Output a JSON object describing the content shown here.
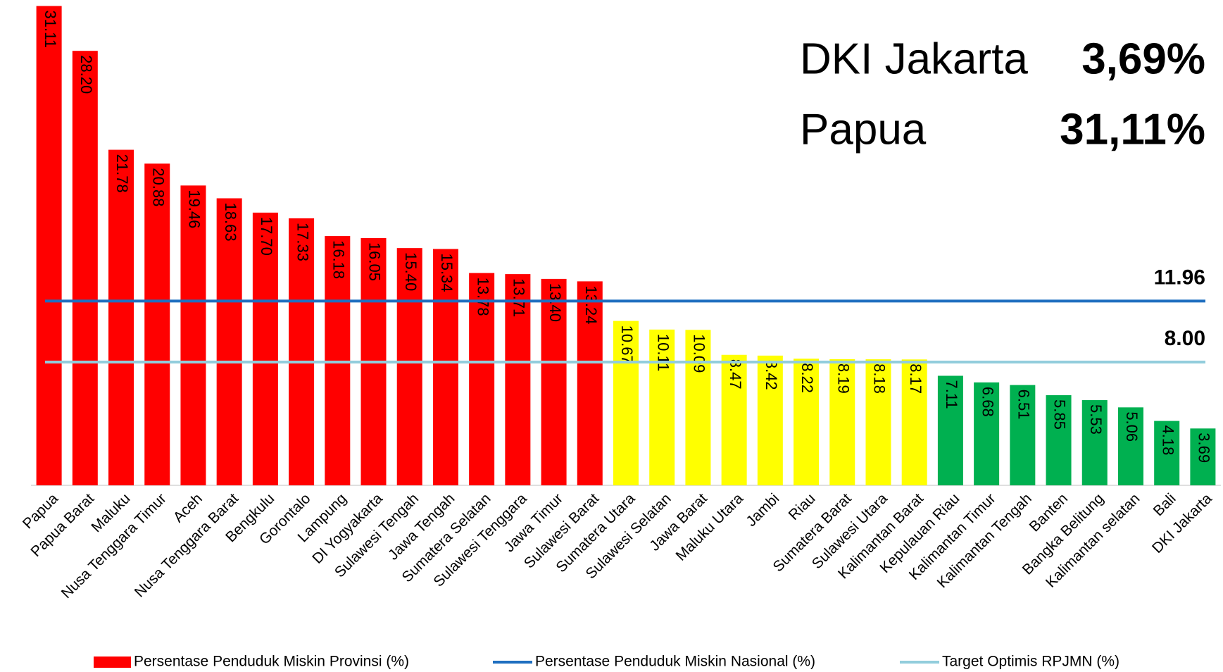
{
  "chart_data": {
    "type": "bar",
    "categories": [
      "Papua",
      "Papua Barat",
      "Maluku",
      "Nusa Tenggara Timur",
      "Aceh",
      "Nusa Tenggara Barat",
      "Bengkulu",
      "Gorontalo",
      "Lampung",
      "DI Yogyakarta",
      "Sulawesi Tengah",
      "Jawa Tengah",
      "Sumatera Selatan",
      "Sulawesi Tenggara",
      "Jawa Timur",
      "Sulawesi Barat",
      "Sumatera Utara",
      "Sulawesi Selatan",
      "Jawa Barat",
      "Maluku Utara",
      "Jambi",
      "Riau",
      "Sumatera Barat",
      "Sulawesi Utara",
      "Kalimantan Barat",
      "Kepulauan Riau",
      "Kalimantan Timur",
      "Kalimantan Tengah",
      "Banten",
      "Bangka Belitung",
      "Kalimantan selatan",
      "Bali",
      "DKI Jakarta"
    ],
    "values": [
      31.11,
      28.2,
      21.78,
      20.88,
      19.46,
      18.63,
      17.7,
      17.33,
      16.18,
      16.05,
      15.4,
      15.34,
      13.78,
      13.71,
      13.4,
      13.24,
      10.67,
      10.11,
      10.09,
      8.47,
      8.42,
      8.22,
      8.19,
      8.18,
      8.17,
      7.11,
      6.68,
      6.51,
      5.85,
      5.53,
      5.06,
      4.18,
      3.69
    ],
    "value_labels": [
      "31.11",
      "28.20",
      "21.78",
      "20.88",
      "19.46",
      "18.63",
      "17.70",
      "17.33",
      "16.18",
      "16.05",
      "15.40",
      "15.34",
      "13.78",
      "13.71",
      "13.40",
      "13.24",
      "10.67",
      "10.11",
      "10.09",
      "8.47",
      "8.42",
      "8.22",
      "8.19",
      "8.18",
      "8.17",
      "7.11",
      "6.68",
      "6.51",
      "5.85",
      "5.53",
      "5.06",
      "4.18",
      "3.69"
    ],
    "colors": [
      "#ff0000",
      "#ff0000",
      "#ff0000",
      "#ff0000",
      "#ff0000",
      "#ff0000",
      "#ff0000",
      "#ff0000",
      "#ff0000",
      "#ff0000",
      "#ff0000",
      "#ff0000",
      "#ff0000",
      "#ff0000",
      "#ff0000",
      "#ff0000",
      "#ffff00",
      "#ffff00",
      "#ffff00",
      "#ffff00",
      "#ffff00",
      "#ffff00",
      "#ffff00",
      "#ffff00",
      "#ffff00",
      "#00b050",
      "#00b050",
      "#00b050",
      "#00b050",
      "#00b050",
      "#00b050",
      "#00b050",
      "#00b050"
    ],
    "legend_label": "Persentase Penduduk Miskin Provinsi (%)",
    "legend_color": "#ff0000",
    "ylim": [
      0,
      31.5
    ],
    "reference_lines": [
      {
        "name": "Persentase Penduduk Miskin Nasional (%)",
        "value": 11.96,
        "label": "11.96",
        "color": "#1f6fc0"
      },
      {
        "name": "Target Optimis RPJMN (%)",
        "value": 8,
        "label": "8.00",
        "color": "#92cddc"
      }
    ],
    "annotations": [
      {
        "label": "DKI Jakarta",
        "value_label": "3,69%"
      },
      {
        "label": "Papua",
        "value_label": "31,11%"
      }
    ]
  }
}
